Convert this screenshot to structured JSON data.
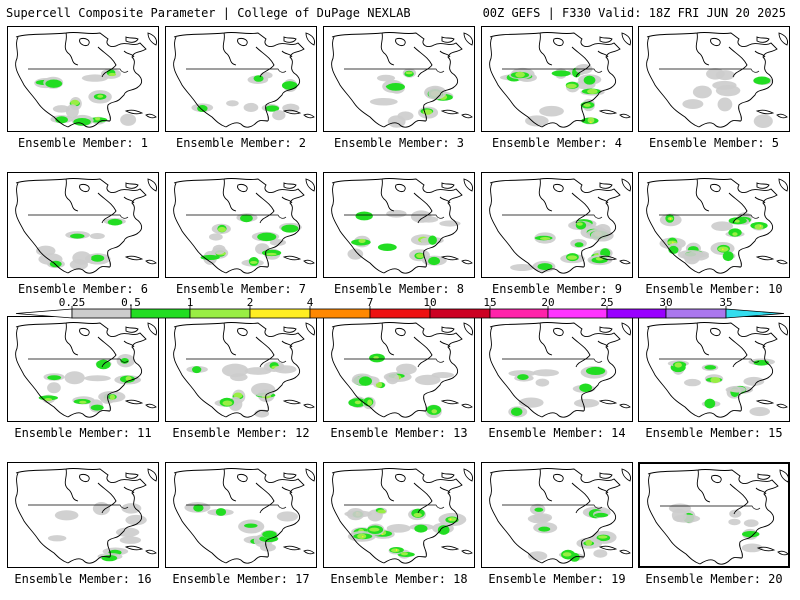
{
  "header": {
    "left_title": "Supercell Composite Parameter | College of DuPage NEXLAB",
    "right_title": "00Z GEFS | F330 Valid: 18Z FRI JUN 20 2025"
  },
  "colors": {
    "light_gray": "#cccccc",
    "green": "#22dd22",
    "light_green": "#99ee44",
    "yellow": "#ffee22",
    "orange": "#ff8800",
    "red": "#ee1111",
    "deep_red": "#cc0022",
    "magenta": "#ff22aa",
    "pink": "#ff33ff",
    "purple": "#9900ff",
    "lavender": "#aa77ee",
    "cyan": "#33ddee",
    "coastline": "#000000",
    "border": "#000000"
  },
  "scale": {
    "labels": [
      "0.25",
      "0.5",
      "1",
      "2",
      "4",
      "7",
      "10",
      "15",
      "20",
      "25",
      "30",
      "35"
    ],
    "bins": [
      {
        "color": "#ffffff"
      },
      {
        "color": "#cccccc"
      },
      {
        "color": "#22dd22"
      },
      {
        "color": "#99ee44"
      },
      {
        "color": "#ffee22"
      },
      {
        "color": "#ff8800"
      },
      {
        "color": "#ee1111"
      },
      {
        "color": "#cc0022"
      },
      {
        "color": "#ff22aa"
      },
      {
        "color": "#ff33ff"
      },
      {
        "color": "#9900ff"
      },
      {
        "color": "#aa77ee"
      },
      {
        "color": "#33ddee"
      }
    ]
  },
  "members": [
    {
      "label": "Ensemble Member: 1",
      "intensity": 2
    },
    {
      "label": "Ensemble Member: 2",
      "intensity": 1
    },
    {
      "label": "Ensemble Member: 3",
      "intensity": 2
    },
    {
      "label": "Ensemble Member: 4",
      "intensity": 3
    },
    {
      "label": "Ensemble Member: 5",
      "intensity": 1
    },
    {
      "label": "Ensemble Member: 6",
      "intensity": 1
    },
    {
      "label": "Ensemble Member: 7",
      "intensity": 2
    },
    {
      "label": "Ensemble Member: 8",
      "intensity": 2
    },
    {
      "label": "Ensemble Member: 9",
      "intensity": 3
    },
    {
      "label": "Ensemble Member: 10",
      "intensity": 3
    },
    {
      "label": "Ensemble Member: 11",
      "intensity": 2
    },
    {
      "label": "Ensemble Member: 12",
      "intensity": 2
    },
    {
      "label": "Ensemble Member: 13",
      "intensity": 2
    },
    {
      "label": "Ensemble Member: 14",
      "intensity": 1
    },
    {
      "label": "Ensemble Member: 15",
      "intensity": 2
    },
    {
      "label": "Ensemble Member: 16",
      "intensity": 1
    },
    {
      "label": "Ensemble Member: 17",
      "intensity": 1
    },
    {
      "label": "Ensemble Member: 18",
      "intensity": 3
    },
    {
      "label": "Ensemble Member: 19",
      "intensity": 2
    },
    {
      "label": "Ensemble Member: 20",
      "intensity": 1
    }
  ],
  "selected_member": 20
}
